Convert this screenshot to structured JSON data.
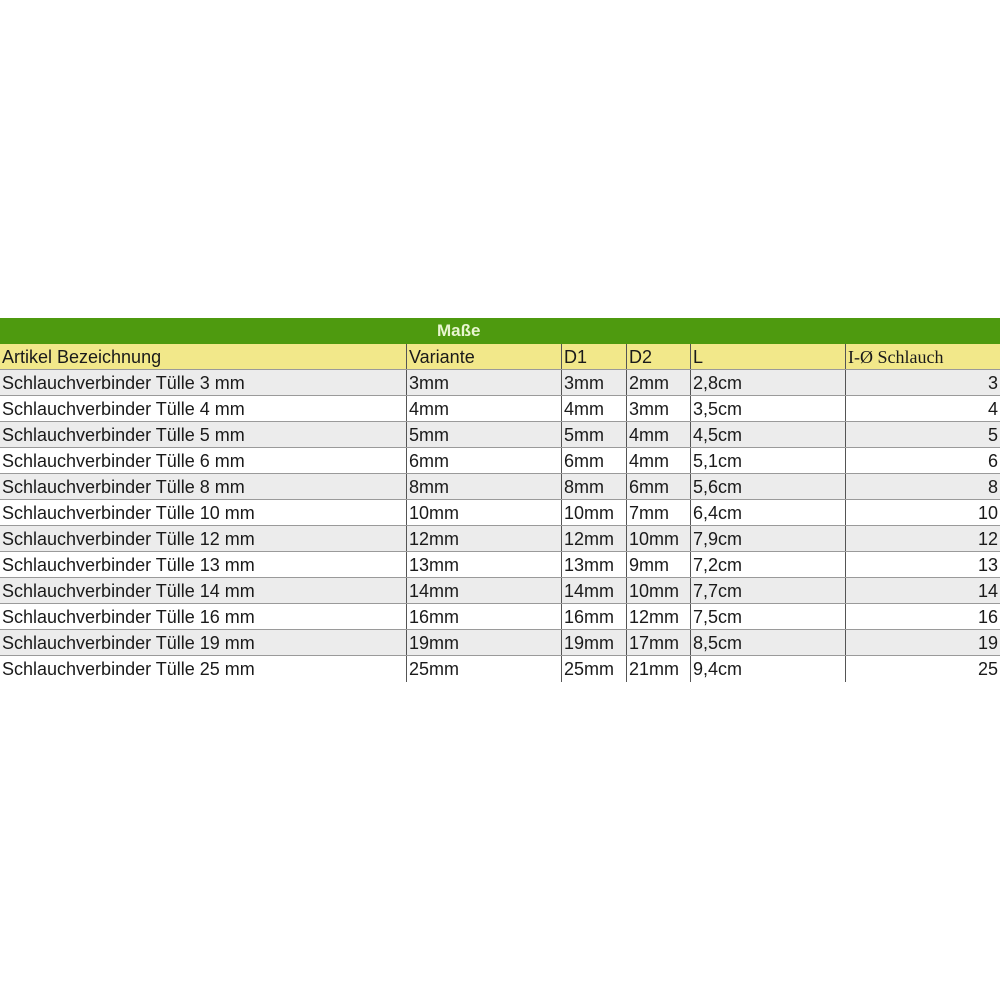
{
  "title": "Maße",
  "headers": [
    "Artikel Bezeichnung",
    "Variante",
    "D1",
    "D2",
    "L",
    "I-Ø Schlauch"
  ],
  "rows": [
    [
      "Schlauchverbinder Tülle 3 mm",
      "3mm",
      "3mm",
      "2mm",
      "2,8cm",
      "3"
    ],
    [
      "Schlauchverbinder Tülle 4 mm",
      "4mm",
      "4mm",
      "3mm",
      "3,5cm",
      "4"
    ],
    [
      "Schlauchverbinder Tülle 5 mm",
      "5mm",
      "5mm",
      "4mm",
      "4,5cm",
      "5"
    ],
    [
      "Schlauchverbinder Tülle 6 mm",
      "6mm",
      "6mm",
      "4mm",
      "5,1cm",
      "6"
    ],
    [
      "Schlauchverbinder Tülle 8 mm",
      "8mm",
      "8mm",
      "6mm",
      "5,6cm",
      "8"
    ],
    [
      "Schlauchverbinder Tülle 10 mm",
      "10mm",
      "10mm",
      "7mm",
      "6,4cm",
      "10"
    ],
    [
      "Schlauchverbinder Tülle 12 mm",
      "12mm",
      "12mm",
      "10mm",
      "7,9cm",
      "12"
    ],
    [
      "Schlauchverbinder Tülle 13 mm",
      "13mm",
      "13mm",
      "9mm",
      "7,2cm",
      "13"
    ],
    [
      "Schlauchverbinder Tülle 14 mm",
      "14mm",
      "14mm",
      "10mm",
      "7,7cm",
      "14"
    ],
    [
      "Schlauchverbinder Tülle 16 mm",
      "16mm",
      "16mm",
      "12mm",
      "7,5cm",
      "16"
    ],
    [
      "Schlauchverbinder Tülle 19 mm",
      "19mm",
      "19mm",
      "17mm",
      "8,5cm",
      "19"
    ],
    [
      "Schlauchverbinder Tülle 25 mm",
      "25mm",
      "25mm",
      "21mm",
      "9,4cm",
      "25"
    ]
  ],
  "colors": {
    "title_bg": "#4e9a0f",
    "header_bg": "#f2e88a",
    "stripe": "#ececec"
  }
}
